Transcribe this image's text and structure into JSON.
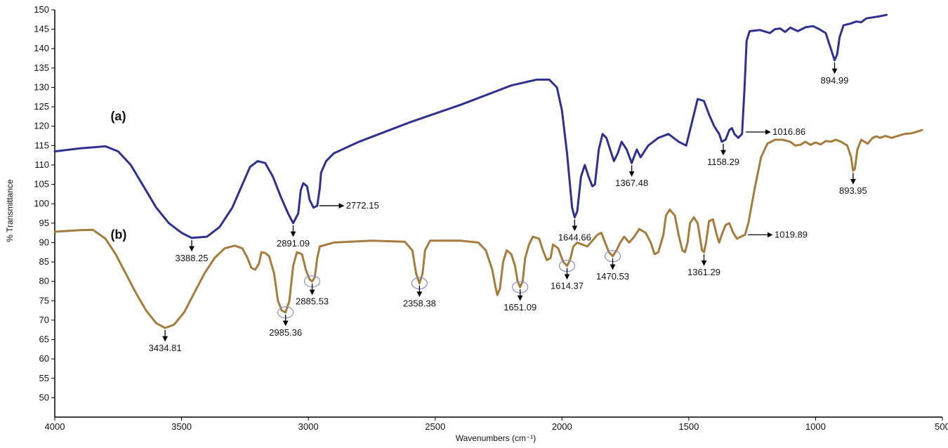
{
  "chart_data": {
    "type": "line",
    "title": "",
    "xlabel": "Wavenumbers (cm⁻¹)",
    "ylabel": "% Transmittance",
    "xlim": [
      4000,
      500
    ],
    "ylim": [
      45,
      150
    ],
    "x_ticks": [
      4000,
      3500,
      3000,
      2500,
      2000,
      1500,
      1000,
      500
    ],
    "y_ticks": [
      50,
      55,
      60,
      65,
      70,
      75,
      80,
      85,
      90,
      95,
      100,
      105,
      110,
      115,
      120,
      125,
      130,
      135,
      140,
      145,
      150
    ],
    "x_reversed": true,
    "grid": false,
    "colors": {
      "a": "#2e3192",
      "b": "#a67c3d",
      "axis": "#000000",
      "circle": "#8a8ac8"
    },
    "series": [
      {
        "name": "(a)",
        "points": [
          [
            4000,
            113.5
          ],
          [
            3900,
            114.3
          ],
          [
            3800,
            114.8
          ],
          [
            3750,
            113.5
          ],
          [
            3700,
            110
          ],
          [
            3650,
            104.5
          ],
          [
            3600,
            99
          ],
          [
            3550,
            95
          ],
          [
            3500,
            92.5
          ],
          [
            3460,
            91.2
          ],
          [
            3400,
            91.5
          ],
          [
            3350,
            94
          ],
          [
            3300,
            99
          ],
          [
            3260,
            105
          ],
          [
            3230,
            109.5
          ],
          [
            3200,
            111
          ],
          [
            3170,
            110.5
          ],
          [
            3140,
            107
          ],
          [
            3110,
            102
          ],
          [
            3080,
            97.5
          ],
          [
            3060,
            95
          ],
          [
            3040,
            97.5
          ],
          [
            3030,
            103.5
          ],
          [
            3020,
            105.3
          ],
          [
            3005,
            104.5
          ],
          [
            2995,
            101
          ],
          [
            2980,
            99
          ],
          [
            2965,
            99.5
          ],
          [
            2955,
            104
          ],
          [
            2950,
            108
          ],
          [
            2930,
            111
          ],
          [
            2900,
            113
          ],
          [
            2800,
            116
          ],
          [
            2600,
            121
          ],
          [
            2400,
            125.5
          ],
          [
            2200,
            130.5
          ],
          [
            2100,
            132
          ],
          [
            2050,
            132
          ],
          [
            2020,
            130
          ],
          [
            2000,
            124
          ],
          [
            1980,
            113
          ],
          [
            1960,
            99
          ],
          [
            1950,
            96.5
          ],
          [
            1940,
            98
          ],
          [
            1925,
            107
          ],
          [
            1910,
            110
          ],
          [
            1895,
            107
          ],
          [
            1880,
            104.5
          ],
          [
            1870,
            105
          ],
          [
            1855,
            114
          ],
          [
            1840,
            118
          ],
          [
            1825,
            117
          ],
          [
            1810,
            114
          ],
          [
            1795,
            111
          ],
          [
            1780,
            113
          ],
          [
            1765,
            116
          ],
          [
            1745,
            114
          ],
          [
            1725,
            110.5
          ],
          [
            1705,
            114
          ],
          [
            1690,
            112
          ],
          [
            1660,
            115
          ],
          [
            1620,
            117
          ],
          [
            1580,
            118
          ],
          [
            1540,
            116
          ],
          [
            1510,
            115
          ],
          [
            1480,
            123
          ],
          [
            1465,
            127
          ],
          [
            1440,
            126.5
          ],
          [
            1420,
            123
          ],
          [
            1400,
            120
          ],
          [
            1380,
            118
          ],
          [
            1370,
            116
          ],
          [
            1355,
            116.5
          ],
          [
            1340,
            119
          ],
          [
            1330,
            119.5
          ],
          [
            1320,
            118
          ],
          [
            1305,
            117
          ],
          [
            1290,
            118
          ],
          [
            1280,
            130
          ],
          [
            1272,
            142
          ],
          [
            1260,
            144.5
          ],
          [
            1220,
            144.8
          ],
          [
            1180,
            144
          ],
          [
            1160,
            145
          ],
          [
            1140,
            145.2
          ],
          [
            1120,
            144.3
          ],
          [
            1100,
            145.4
          ],
          [
            1070,
            144.5
          ],
          [
            1040,
            145.5
          ],
          [
            1010,
            145.8
          ],
          [
            985,
            145
          ],
          [
            960,
            144
          ],
          [
            940,
            140
          ],
          [
            925,
            137
          ],
          [
            915,
            138.5
          ],
          [
            905,
            143
          ],
          [
            890,
            146
          ],
          [
            860,
            146.5
          ],
          [
            840,
            147
          ],
          [
            820,
            146.8
          ],
          [
            800,
            147.8
          ],
          [
            750,
            148.3
          ],
          [
            720,
            148.7
          ]
        ]
      },
      {
        "name": "(b)",
        "points": [
          [
            4000,
            92.8
          ],
          [
            3900,
            93.2
          ],
          [
            3850,
            93.3
          ],
          [
            3800,
            91
          ],
          [
            3760,
            87
          ],
          [
            3720,
            82
          ],
          [
            3680,
            77
          ],
          [
            3640,
            72.5
          ],
          [
            3600,
            69.2
          ],
          [
            3565,
            68
          ],
          [
            3530,
            68.8
          ],
          [
            3490,
            72
          ],
          [
            3450,
            77
          ],
          [
            3410,
            82
          ],
          [
            3370,
            86
          ],
          [
            3330,
            88.5
          ],
          [
            3290,
            89.2
          ],
          [
            3260,
            88.5
          ],
          [
            3240,
            86
          ],
          [
            3225,
            83.5
          ],
          [
            3210,
            83
          ],
          [
            3195,
            84.5
          ],
          [
            3185,
            87.5
          ],
          [
            3170,
            87.3
          ],
          [
            3155,
            86.5
          ],
          [
            3135,
            82
          ],
          [
            3120,
            75
          ],
          [
            3105,
            72.5
          ],
          [
            3090,
            72
          ],
          [
            3075,
            75
          ],
          [
            3060,
            84
          ],
          [
            3045,
            87.5
          ],
          [
            3025,
            87
          ],
          [
            3010,
            83
          ],
          [
            2995,
            80.5
          ],
          [
            2985,
            80
          ],
          [
            2975,
            81
          ],
          [
            2965,
            86
          ],
          [
            2955,
            89
          ],
          [
            2900,
            90
          ],
          [
            2750,
            90.5
          ],
          [
            2620,
            90.2
          ],
          [
            2590,
            88
          ],
          [
            2575,
            82
          ],
          [
            2562,
            79.5
          ],
          [
            2550,
            82
          ],
          [
            2540,
            88
          ],
          [
            2520,
            90.5
          ],
          [
            2400,
            90.5
          ],
          [
            2330,
            90
          ],
          [
            2300,
            88
          ],
          [
            2275,
            83
          ],
          [
            2262,
            78.5
          ],
          [
            2255,
            76.5
          ],
          [
            2245,
            78
          ],
          [
            2232,
            85
          ],
          [
            2218,
            88
          ],
          [
            2200,
            87
          ],
          [
            2185,
            84
          ],
          [
            2175,
            80
          ],
          [
            2165,
            78.5
          ],
          [
            2155,
            80
          ],
          [
            2145,
            86
          ],
          [
            2130,
            89.5
          ],
          [
            2115,
            91.5
          ],
          [
            2090,
            91
          ],
          [
            2075,
            88
          ],
          [
            2060,
            85.5
          ],
          [
            2045,
            86
          ],
          [
            2035,
            89.5
          ],
          [
            2015,
            88.5
          ],
          [
            1995,
            85
          ],
          [
            1980,
            84
          ],
          [
            1968,
            85.5
          ],
          [
            1955,
            89
          ],
          [
            1940,
            90
          ],
          [
            1920,
            89.5
          ],
          [
            1900,
            89
          ],
          [
            1880,
            90.5
          ],
          [
            1860,
            92
          ],
          [
            1845,
            92.5
          ],
          [
            1830,
            90
          ],
          [
            1815,
            87.5
          ],
          [
            1800,
            86.5
          ],
          [
            1785,
            88
          ],
          [
            1770,
            90
          ],
          [
            1755,
            91.5
          ],
          [
            1735,
            90
          ],
          [
            1715,
            91.5
          ],
          [
            1695,
            93.5
          ],
          [
            1670,
            92.5
          ],
          [
            1650,
            90
          ],
          [
            1635,
            87
          ],
          [
            1620,
            87.5
          ],
          [
            1600,
            92
          ],
          [
            1590,
            97
          ],
          [
            1575,
            98.5
          ],
          [
            1555,
            97
          ],
          [
            1540,
            92
          ],
          [
            1525,
            88
          ],
          [
            1515,
            87.5
          ],
          [
            1505,
            90
          ],
          [
            1495,
            95
          ],
          [
            1480,
            96.5
          ],
          [
            1465,
            95
          ],
          [
            1455,
            91
          ],
          [
            1448,
            88
          ],
          [
            1440,
            87.5
          ],
          [
            1432,
            90
          ],
          [
            1420,
            95.5
          ],
          [
            1405,
            96
          ],
          [
            1390,
            92
          ],
          [
            1380,
            90
          ],
          [
            1370,
            92
          ],
          [
            1355,
            94.5
          ],
          [
            1340,
            95
          ],
          [
            1325,
            92.5
          ],
          [
            1310,
            91
          ],
          [
            1295,
            91.5
          ],
          [
            1278,
            92
          ],
          [
            1265,
            95
          ],
          [
            1240,
            104
          ],
          [
            1215,
            112
          ],
          [
            1190,
            115.5
          ],
          [
            1160,
            116.5
          ],
          [
            1130,
            116.5
          ],
          [
            1100,
            116
          ],
          [
            1080,
            115
          ],
          [
            1060,
            115.2
          ],
          [
            1040,
            116
          ],
          [
            1020,
            115.2
          ],
          [
            1000,
            115.8
          ],
          [
            980,
            115.3
          ],
          [
            960,
            116.2
          ],
          [
            940,
            116
          ],
          [
            920,
            116.5
          ],
          [
            900,
            116
          ],
          [
            875,
            115
          ],
          [
            860,
            112
          ],
          [
            852,
            108.5
          ],
          [
            845,
            109
          ],
          [
            835,
            114
          ],
          [
            820,
            116.5
          ],
          [
            795,
            115.5
          ],
          [
            775,
            117
          ],
          [
            760,
            117.4
          ],
          [
            745,
            117
          ],
          [
            725,
            117.5
          ],
          [
            700,
            117
          ],
          [
            680,
            117.4
          ],
          [
            650,
            118
          ],
          [
            620,
            118.2
          ],
          [
            600,
            118.6
          ],
          [
            580,
            119
          ]
        ]
      }
    ],
    "series_tags": [
      {
        "text": "(a)",
        "x": 3780,
        "y": 121.5
      },
      {
        "text": "(b)",
        "x": 3780,
        "y": 91
      }
    ],
    "annotations": [
      {
        "label": "3388.25",
        "series": 0,
        "x": 3460,
        "y": 91.2,
        "type": "down",
        "circle": false
      },
      {
        "label": "2891.09",
        "series": 0,
        "x": 3060,
        "y": 95,
        "type": "down",
        "circle": false
      },
      {
        "label": "2772.15",
        "series": 0,
        "x": 2968,
        "y": 99.5,
        "type": "right",
        "circle": false
      },
      {
        "label": "1644.66",
        "series": 0,
        "x": 1950,
        "y": 96.5,
        "type": "down",
        "circle": false
      },
      {
        "label": "1367.48",
        "series": 0,
        "x": 1725,
        "y": 110.5,
        "type": "down",
        "circle": false
      },
      {
        "label": "1158.29",
        "series": 0,
        "x": 1364,
        "y": 116,
        "type": "down",
        "circle": false
      },
      {
        "label": "1016.86",
        "series": 0,
        "x": 1286,
        "y": 118.5,
        "type": "right",
        "circle": false
      },
      {
        "label": "894.99",
        "series": 0,
        "x": 925,
        "y": 137,
        "type": "down",
        "circle": false
      },
      {
        "label": "3434.81",
        "series": 1,
        "x": 3565,
        "y": 68,
        "type": "down",
        "circle": false
      },
      {
        "label": "2985.36",
        "series": 1,
        "x": 3090,
        "y": 72,
        "type": "down",
        "circle": true
      },
      {
        "label": "2885.53",
        "series": 1,
        "x": 2985,
        "y": 80,
        "type": "down",
        "circle": true
      },
      {
        "label": "2358.38",
        "series": 1,
        "x": 2562,
        "y": 79.5,
        "type": "down",
        "circle": true
      },
      {
        "label": "1651.09",
        "series": 1,
        "x": 2165,
        "y": 78.5,
        "type": "down",
        "circle": true
      },
      {
        "label": "1614.37",
        "series": 1,
        "x": 1980,
        "y": 84,
        "type": "down",
        "circle": true
      },
      {
        "label": "1470.53",
        "series": 1,
        "x": 1800,
        "y": 86.5,
        "type": "down",
        "circle": true
      },
      {
        "label": "1361.29",
        "series": 1,
        "x": 1440,
        "y": 87.5,
        "type": "down",
        "circle": false
      },
      {
        "label": "1019.89",
        "series": 1,
        "x": 1278,
        "y": 92,
        "type": "right",
        "circle": false
      },
      {
        "label": "893.95",
        "series": 1,
        "x": 852,
        "y": 108.5,
        "type": "down",
        "circle": false
      }
    ]
  }
}
